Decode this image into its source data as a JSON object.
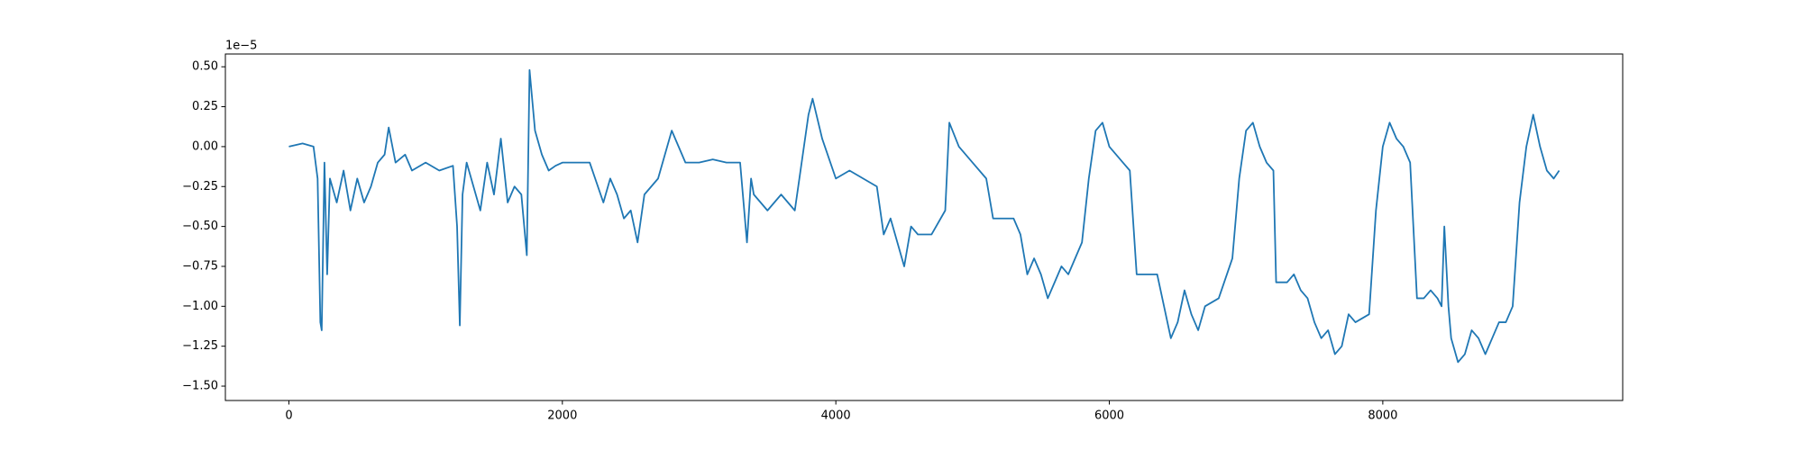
{
  "chart_data": {
    "type": "line",
    "offset_label": "1e−5",
    "x": [
      0,
      100,
      180,
      210,
      230,
      240,
      260,
      280,
      300,
      350,
      400,
      450,
      500,
      550,
      600,
      650,
      700,
      730,
      780,
      850,
      900,
      1000,
      1100,
      1200,
      1230,
      1250,
      1270,
      1300,
      1350,
      1400,
      1450,
      1500,
      1550,
      1600,
      1650,
      1700,
      1740,
      1760,
      1800,
      1850,
      1900,
      1950,
      2000,
      2100,
      2200,
      2300,
      2350,
      2400,
      2450,
      2500,
      2550,
      2600,
      2700,
      2800,
      2850,
      2900,
      3000,
      3100,
      3200,
      3300,
      3350,
      3380,
      3400,
      3500,
      3600,
      3700,
      3800,
      3830,
      3900,
      4000,
      4100,
      4200,
      4300,
      4350,
      4400,
      4450,
      4500,
      4550,
      4600,
      4700,
      4800,
      4830,
      4900,
      5000,
      5100,
      5150,
      5200,
      5300,
      5350,
      5400,
      5450,
      5500,
      5550,
      5600,
      5650,
      5700,
      5800,
      5850,
      5900,
      5950,
      6000,
      6100,
      6150,
      6200,
      6300,
      6350,
      6400,
      6450,
      6500,
      6550,
      6600,
      6650,
      6700,
      6800,
      6900,
      6950,
      7000,
      7050,
      7100,
      7150,
      7200,
      7220,
      7300,
      7350,
      7400,
      7450,
      7500,
      7550,
      7600,
      7650,
      7700,
      7750,
      7800,
      7900,
      7950,
      8000,
      8050,
      8100,
      8150,
      8200,
      8250,
      8300,
      8350,
      8400,
      8430,
      8450,
      8480,
      8500,
      8550,
      8600,
      8650,
      8700,
      8750,
      8800,
      8850,
      8900,
      8950,
      9000,
      9050,
      9100,
      9150,
      9200,
      9250,
      9290
    ],
    "series": [
      {
        "color": "#1f77b4",
        "values": [
          0.0,
          0.02,
          0.0,
          -0.2,
          -1.1,
          -1.15,
          -0.1,
          -0.8,
          -0.2,
          -0.35,
          -0.15,
          -0.4,
          -0.2,
          -0.35,
          -0.25,
          -0.1,
          -0.05,
          0.12,
          -0.1,
          -0.05,
          -0.15,
          -0.1,
          -0.15,
          -0.12,
          -0.5,
          -1.12,
          -0.3,
          -0.1,
          -0.25,
          -0.4,
          -0.1,
          -0.3,
          0.05,
          -0.35,
          -0.25,
          -0.3,
          -0.68,
          0.48,
          0.1,
          -0.05,
          -0.15,
          -0.12,
          -0.1,
          -0.1,
          -0.1,
          -0.35,
          -0.2,
          -0.3,
          -0.45,
          -0.4,
          -0.6,
          -0.3,
          -0.2,
          0.1,
          0.0,
          -0.1,
          -0.1,
          -0.08,
          -0.1,
          -0.1,
          -0.6,
          -0.2,
          -0.3,
          -0.4,
          -0.3,
          -0.4,
          0.2,
          0.3,
          0.05,
          -0.2,
          -0.15,
          -0.2,
          -0.25,
          -0.55,
          -0.45,
          -0.6,
          -0.75,
          -0.5,
          -0.55,
          -0.55,
          -0.4,
          0.15,
          0.0,
          -0.1,
          -0.2,
          -0.45,
          -0.45,
          -0.45,
          -0.55,
          -0.8,
          -0.7,
          -0.8,
          -0.95,
          -0.85,
          -0.75,
          -0.8,
          -0.6,
          -0.2,
          0.1,
          0.15,
          0.0,
          -0.1,
          -0.15,
          -0.8,
          -0.8,
          -0.8,
          -1.0,
          -1.2,
          -1.1,
          -0.9,
          -1.05,
          -1.15,
          -1.0,
          -0.95,
          -0.7,
          -0.2,
          0.1,
          0.15,
          0.0,
          -0.1,
          -0.15,
          -0.85,
          -0.85,
          -0.8,
          -0.9,
          -0.95,
          -1.1,
          -1.2,
          -1.15,
          -1.3,
          -1.25,
          -1.05,
          -1.1,
          -1.05,
          -0.4,
          0.0,
          0.15,
          0.05,
          0.0,
          -0.1,
          -0.95,
          -0.95,
          -0.9,
          -0.95,
          -1.0,
          -0.5,
          -1.0,
          -1.2,
          -1.35,
          -1.3,
          -1.15,
          -1.2,
          -1.3,
          -1.2,
          -1.1,
          -1.1,
          -1.0,
          -0.35,
          0.0,
          0.2,
          0.0,
          -0.15,
          -0.2,
          -0.15
        ]
      }
    ],
    "xlim": [
      -464.5,
      9754.5
    ],
    "ylim": [
      -1.59,
      0.58
    ],
    "xticks": [
      0,
      2000,
      4000,
      6000,
      8000
    ],
    "yticks": [
      {
        "value": 0.5,
        "label": "0.50"
      },
      {
        "value": 0.25,
        "label": "0.25"
      },
      {
        "value": 0,
        "label": "0.00"
      },
      {
        "value": -0.25,
        "label": "−0.25"
      },
      {
        "value": -0.5,
        "label": "−0.50"
      },
      {
        "value": -0.75,
        "label": "−0.75"
      },
      {
        "value": -1,
        "label": "−1.00"
      },
      {
        "value": -1.25,
        "label": "−1.25"
      },
      {
        "value": -1.5,
        "label": "−1.50"
      }
    ],
    "grid": false
  }
}
